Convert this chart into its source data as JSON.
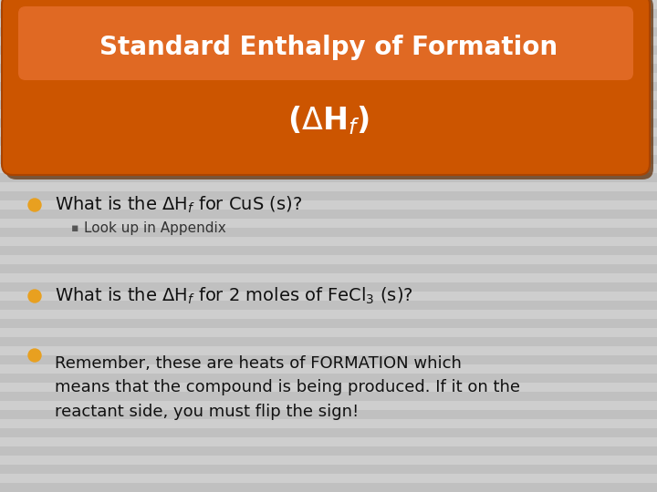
{
  "title_line1": "Standard Enthalpy of Formation",
  "title_line2": "(ΔH$_f$)",
  "title_bg_color": "#D05A00",
  "title_shadow_color": "#7A3300",
  "title_highlight_color": "#E8843A",
  "title_text_color": "#FFFFFF",
  "bg_color": "#C8C8C8",
  "stripe_color_dark": "#BBBBBB",
  "stripe_color_light": "#D0D0D0",
  "bullet_color": "#E8A020",
  "bullet1_sub_color": "#555555",
  "body_text_color": "#111111",
  "sub_text_color": "#333333",
  "bullet1_sub": "Look up in Appendix",
  "title_fontsize": 20,
  "body_fontsize": 14,
  "sub_fontsize": 11
}
